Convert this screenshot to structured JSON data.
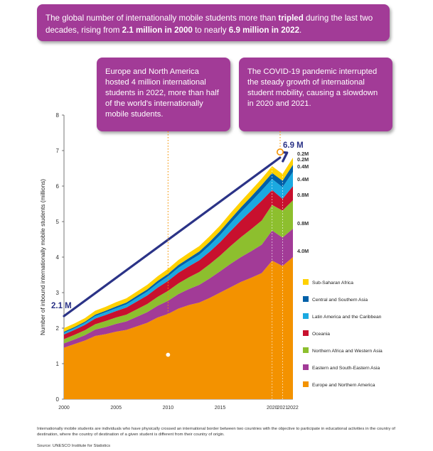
{
  "headline": {
    "t1": "The global number of internationally mobile students more than ",
    "t2": "tripled",
    "t3": " during the last two decades, rising from ",
    "t4": "2.1 million in 2000",
    "t5": " to nearly ",
    "t6": "6.9 million in 2022",
    "t7": "."
  },
  "callouts": {
    "europe": "Europe and North America hosted 4 million international students in 2022, more than half of the world's internationally mobile students.",
    "covid": "The COVID-19 pandemic interrupted the steady growth of international student mobility, causing a slowdown in 2020 and 2021."
  },
  "footnote": "Internationally mobile students are individuals who have physically crossed an international border between two countries with the objective to participate in educational activities in the country of destination, where the country of destination of a given student is different from their country of origin.",
  "source": "Source: UNESCO Institute for Statistics",
  "colors": {
    "callout_bg": "#a23b97",
    "arrow": "#2b3387",
    "marker": "#f39200",
    "label_dark": "#2b3387"
  },
  "chart_data": {
    "type": "area",
    "stacked": true,
    "ylabel": "Number of inbound internationally mobile students (millions)",
    "xlabel": "",
    "ylim": [
      0,
      8
    ],
    "yticks": [
      0,
      1,
      2,
      3,
      4,
      5,
      6,
      7,
      8
    ],
    "xlim": [
      2000,
      2022
    ],
    "xticks": [
      2000,
      2005,
      2010,
      2015,
      2020,
      2021,
      2022
    ],
    "x": [
      2000,
      2001,
      2002,
      2003,
      2004,
      2005,
      2006,
      2007,
      2008,
      2009,
      2010,
      2011,
      2012,
      2013,
      2014,
      2015,
      2016,
      2017,
      2018,
      2019,
      2020,
      2021,
      2022
    ],
    "series": [
      {
        "name": "Europe and Northern America",
        "color": "#f39200",
        "values": [
          1.45,
          1.55,
          1.65,
          1.78,
          1.83,
          1.9,
          1.95,
          2.05,
          2.15,
          2.3,
          2.4,
          2.55,
          2.65,
          2.72,
          2.85,
          3.0,
          3.15,
          3.3,
          3.42,
          3.55,
          3.9,
          3.75,
          4.0
        ]
      },
      {
        "name": "Eastern and South-Eastern Asia",
        "color": "#a23b97",
        "values": [
          0.12,
          0.13,
          0.15,
          0.18,
          0.2,
          0.22,
          0.24,
          0.27,
          0.3,
          0.33,
          0.37,
          0.41,
          0.45,
          0.5,
          0.55,
          0.6,
          0.66,
          0.7,
          0.75,
          0.8,
          0.85,
          0.8,
          0.8
        ]
      },
      {
        "name": "Northern Africa and Western Asia",
        "color": "#8dbf2e",
        "values": [
          0.12,
          0.13,
          0.14,
          0.15,
          0.17,
          0.18,
          0.19,
          0.21,
          0.23,
          0.25,
          0.28,
          0.3,
          0.33,
          0.36,
          0.4,
          0.44,
          0.5,
          0.56,
          0.62,
          0.68,
          0.72,
          0.76,
          0.8
        ]
      },
      {
        "name": "Oceania",
        "color": "#c8102e",
        "values": [
          0.13,
          0.14,
          0.15,
          0.16,
          0.17,
          0.18,
          0.2,
          0.22,
          0.24,
          0.26,
          0.28,
          0.3,
          0.31,
          0.33,
          0.35,
          0.38,
          0.42,
          0.47,
          0.52,
          0.56,
          0.42,
          0.33,
          0.4
        ]
      },
      {
        "name": "Latin America and the Caribbean",
        "color": "#1ba9e1",
        "values": [
          0.05,
          0.05,
          0.06,
          0.07,
          0.08,
          0.08,
          0.09,
          0.1,
          0.11,
          0.12,
          0.13,
          0.14,
          0.15,
          0.16,
          0.18,
          0.2,
          0.22,
          0.24,
          0.26,
          0.29,
          0.31,
          0.33,
          0.4
        ]
      },
      {
        "name": "Central and Southern Asia",
        "color": "#0060a8",
        "values": [
          0.03,
          0.03,
          0.03,
          0.04,
          0.04,
          0.05,
          0.05,
          0.06,
          0.06,
          0.07,
          0.07,
          0.08,
          0.08,
          0.09,
          0.1,
          0.11,
          0.12,
          0.13,
          0.14,
          0.15,
          0.17,
          0.18,
          0.2
        ]
      },
      {
        "name": "Sub-Saharan Africa",
        "color": "#ffd100",
        "values": [
          0.1,
          0.1,
          0.1,
          0.11,
          0.11,
          0.12,
          0.12,
          0.12,
          0.13,
          0.13,
          0.14,
          0.14,
          0.15,
          0.15,
          0.16,
          0.16,
          0.17,
          0.17,
          0.18,
          0.18,
          0.19,
          0.19,
          0.2
        ]
      }
    ],
    "legend_order": [
      "Sub-Saharan Africa",
      "Central and Southern Asia",
      "Latin America and the Caribbean",
      "Oceania",
      "Northern Africa and Western Asia",
      "Eastern and South-Eastern Asia",
      "Europe and Northern America"
    ],
    "legend_position": "right",
    "end_labels_2022": [
      "0.2M",
      "0.2M",
      "0.4M",
      "0.4M",
      "0.8M",
      "0.8M",
      "4.0M"
    ],
    "annotations": {
      "start_value": 2.1,
      "start_label": "2.1 M",
      "start_year": 2000,
      "end_value": 6.9,
      "end_label": "6.9 M",
      "end_year": 2022,
      "europe_marker_year": 2010,
      "europe_marker_value": 1.25
    }
  }
}
